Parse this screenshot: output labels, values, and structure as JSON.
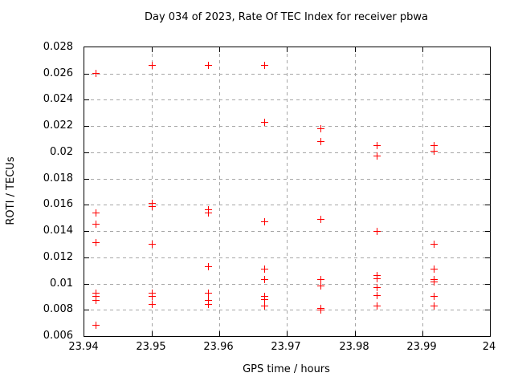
{
  "colors": {
    "background": "#ffffff",
    "marker": "#ff0000",
    "grid": "#a6a6a6",
    "axis": "#000000",
    "text": "#000000"
  },
  "chart_data": {
    "type": "scatter",
    "title": "Day 034 of 2023, Rate Of TEC Index for receiver pbwa",
    "xlabel": "GPS time / hours",
    "ylabel": "ROTI / TECUs",
    "xlim": [
      23.94,
      24
    ],
    "ylim": [
      0.006,
      0.028
    ],
    "x_ticks": [
      23.94,
      23.95,
      23.96,
      23.97,
      23.98,
      23.99,
      24
    ],
    "x_tick_labels": [
      "23.94",
      "23.95",
      "23.96",
      "23.97",
      "23.98",
      "23.99",
      "24"
    ],
    "y_ticks": [
      0.006,
      0.008,
      0.01,
      0.012,
      0.014,
      0.016,
      0.018,
      0.02,
      0.022,
      0.024,
      0.026,
      0.028
    ],
    "y_tick_labels": [
      "0.006",
      "0.008",
      "0.01",
      "0.012",
      "0.014",
      "0.016",
      "0.018",
      "0.02",
      "0.022",
      "0.024",
      "0.026",
      "0.028"
    ],
    "grid": true,
    "legend": false,
    "marker_style": "plus",
    "points": [
      [
        23.9417,
        0.026
      ],
      [
        23.9417,
        0.0154
      ],
      [
        23.9417,
        0.0145
      ],
      [
        23.9417,
        0.0131
      ],
      [
        23.9417,
        0.0093
      ],
      [
        23.9417,
        0.009
      ],
      [
        23.9417,
        0.0087
      ],
      [
        23.9417,
        0.0068
      ],
      [
        23.95,
        0.0266
      ],
      [
        23.95,
        0.0161
      ],
      [
        23.95,
        0.0159
      ],
      [
        23.95,
        0.013
      ],
      [
        23.95,
        0.0093
      ],
      [
        23.95,
        0.009
      ],
      [
        23.95,
        0.0084
      ],
      [
        23.9583,
        0.0266
      ],
      [
        23.9583,
        0.0156
      ],
      [
        23.9583,
        0.0154
      ],
      [
        23.9583,
        0.0113
      ],
      [
        23.9583,
        0.0093
      ],
      [
        23.9583,
        0.0087
      ],
      [
        23.9583,
        0.0084
      ],
      [
        23.9667,
        0.0266
      ],
      [
        23.9667,
        0.0223
      ],
      [
        23.9667,
        0.0147
      ],
      [
        23.9667,
        0.0111
      ],
      [
        23.9667,
        0.0103
      ],
      [
        23.9667,
        0.009
      ],
      [
        23.9667,
        0.0088
      ],
      [
        23.9667,
        0.0083
      ],
      [
        23.975,
        0.0218
      ],
      [
        23.975,
        0.0208
      ],
      [
        23.975,
        0.0149
      ],
      [
        23.975,
        0.0103
      ],
      [
        23.975,
        0.0098
      ],
      [
        23.975,
        0.0081
      ],
      [
        23.975,
        0.008
      ],
      [
        23.9833,
        0.0205
      ],
      [
        23.9833,
        0.0197
      ],
      [
        23.9833,
        0.014
      ],
      [
        23.9833,
        0.0106
      ],
      [
        23.9833,
        0.0104
      ],
      [
        23.9833,
        0.0097
      ],
      [
        23.9833,
        0.0091
      ],
      [
        23.9833,
        0.0083
      ],
      [
        23.9917,
        0.0205
      ],
      [
        23.9917,
        0.0201
      ],
      [
        23.9917,
        0.013
      ],
      [
        23.9917,
        0.0111
      ],
      [
        23.9917,
        0.0103
      ],
      [
        23.9917,
        0.0101
      ],
      [
        23.9917,
        0.009
      ],
      [
        23.9917,
        0.0083
      ]
    ]
  }
}
